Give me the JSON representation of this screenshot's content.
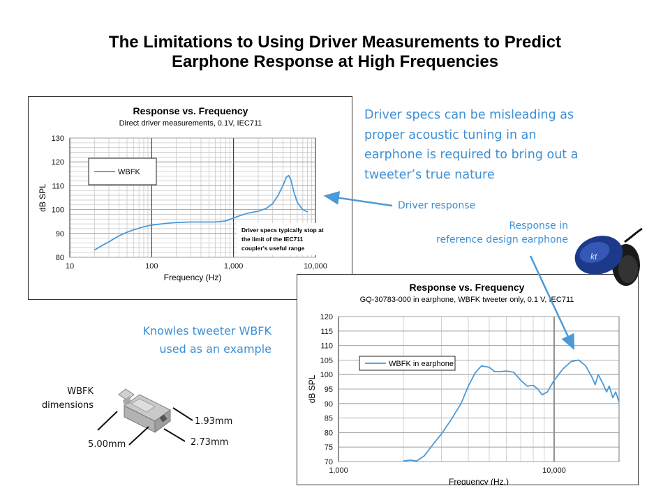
{
  "page": {
    "title_line1": "The Limitations to Using Driver Measurements to Predict",
    "title_line2": "Earphone Response at High Frequencies"
  },
  "callouts": {
    "spec_note": [
      "Driver specs can be misleading as",
      "proper acoustic tuning in an",
      "earphone is required to bring out a",
      "tweeter’s true nature"
    ],
    "driver_response": "Driver response",
    "reference_line1": "Response in",
    "reference_line2": "reference design earphone",
    "knowles_line1": "Knowles tweeter WBFK",
    "knowles_line2": "used as an example"
  },
  "dimensions": {
    "label_line1": "WBFK",
    "label_line2": "dimensions",
    "d1": "1.93mm",
    "d2": "2.73mm",
    "d3": "5.00mm"
  },
  "colors": {
    "series": "#4a9ad9",
    "accent_text": "#3c8fd6",
    "earphone_body": "#1d3a8a"
  },
  "chart_data": [
    {
      "type": "line",
      "title": "Response vs. Frequency",
      "subtitle": "Direct driver  measurements, 0.1V, IEC711",
      "xlabel": "Frequency  (Hz)",
      "ylabel": "dB SPL",
      "xscale": "log",
      "xlim": [
        10,
        10000
      ],
      "ylim": [
        80,
        130
      ],
      "xticks": [
        "10",
        "100",
        "1,000",
        "10,000"
      ],
      "yticks": [
        "80",
        "90",
        "100",
        "110",
        "120",
        "130"
      ],
      "grid": true,
      "legend": "top-left",
      "annotation": [
        "Driver specs typically stop at",
        "the limit of the IEC711",
        "coupler's useful range"
      ],
      "series": [
        {
          "name": "WBFK",
          "x": [
            20,
            25,
            30,
            40,
            50,
            60,
            80,
            100,
            150,
            200,
            300,
            400,
            600,
            800,
            1000,
            1200,
            1500,
            2000,
            2500,
            3000,
            3500,
            4000,
            4400,
            4700,
            5000,
            5500,
            6000,
            7000,
            8000
          ],
          "y": [
            83,
            85,
            86.5,
            89,
            90.5,
            91.5,
            92.8,
            93.5,
            94.2,
            94.6,
            94.8,
            94.8,
            94.8,
            95.2,
            96.5,
            97.5,
            98.5,
            99.3,
            100.5,
            102.5,
            106,
            110,
            113.5,
            114.3,
            112.5,
            107,
            103,
            100,
            99
          ]
        }
      ]
    },
    {
      "type": "line",
      "title": "Response vs. Frequency",
      "subtitle": "GQ-30783-000  in earphone,  WBFK tweeter only, 0.1 V, IEC711",
      "xlabel": "Frequency  (Hz.)",
      "ylabel": "dB SPL",
      "xscale": "log",
      "xlim": [
        1000,
        20000
      ],
      "ylim": [
        70,
        120
      ],
      "xticks": [
        "1,000",
        "10,000"
      ],
      "yticks": [
        "70",
        "75",
        "80",
        "85",
        "90",
        "95",
        "100",
        "105",
        "110",
        "115",
        "120"
      ],
      "grid": true,
      "legend": "center-left",
      "series": [
        {
          "name": "WBFK in earphone",
          "x": [
            2000,
            2150,
            2300,
            2500,
            2750,
            3000,
            3300,
            3700,
            4000,
            4300,
            4600,
            5000,
            5300,
            5600,
            6000,
            6500,
            7000,
            7500,
            8000,
            8400,
            8800,
            9300,
            10000,
            11000,
            12000,
            13000,
            14000,
            15000,
            15500,
            16000,
            16800,
            17500,
            18000,
            18700,
            19300,
            20000
          ],
          "y": [
            70.2,
            70.5,
            70.2,
            72,
            76,
            79.5,
            84,
            90,
            96,
            100.5,
            103,
            102.5,
            101,
            101,
            101.2,
            100.8,
            98,
            96,
            96.3,
            95,
            93,
            94,
            98,
            102,
            104.5,
            105,
            103,
            99,
            96.5,
            100,
            97,
            94,
            96,
            92,
            94,
            90.5
          ]
        }
      ]
    }
  ]
}
